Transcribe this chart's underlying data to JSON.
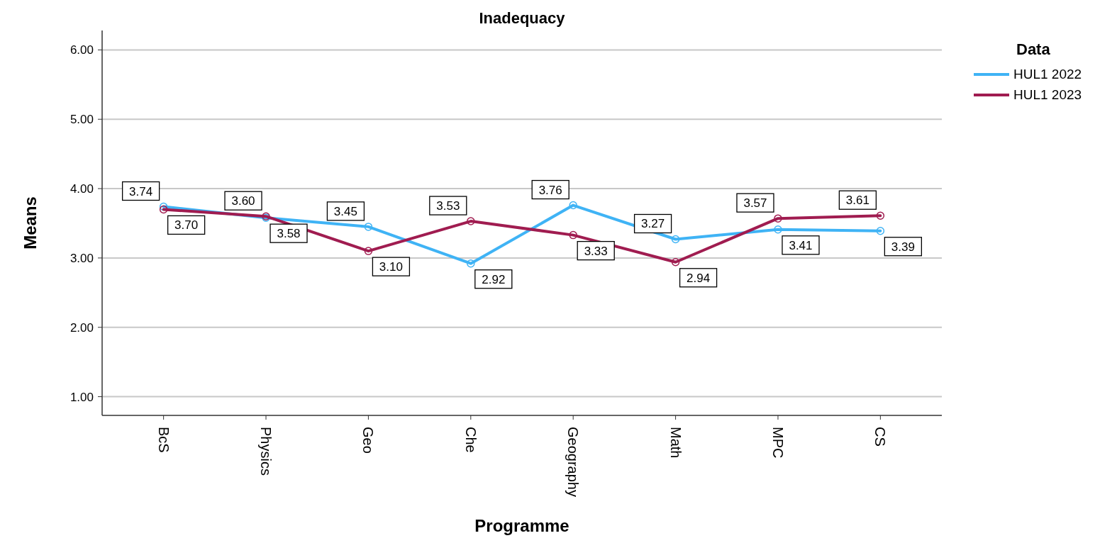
{
  "chart_data": {
    "type": "line",
    "title": "Inadequacy",
    "xlabel": "Programme",
    "ylabel": "Means",
    "legend_title": "Data",
    "categories": [
      "BcS",
      "Physics",
      "Geo",
      "Che",
      "Geography",
      "Math",
      "MPC",
      "CS"
    ],
    "series": [
      {
        "name": "HUL1 2022",
        "color": "#3fb3f5",
        "values": [
          3.74,
          3.58,
          3.45,
          2.92,
          3.76,
          3.27,
          3.41,
          3.39
        ],
        "value_labels": [
          "3.74",
          "3.58",
          "3.45",
          "2.92",
          "3.76",
          "3.27",
          "3.41",
          "3.39"
        ]
      },
      {
        "name": "HUL1 2023",
        "color": "#a01c50",
        "values": [
          3.7,
          3.6,
          3.1,
          3.53,
          3.33,
          2.94,
          3.57,
          3.61
        ],
        "value_labels": [
          "3.70",
          "3.60",
          "3.10",
          "3.53",
          "3.33",
          "2.94",
          "3.57",
          "3.61"
        ]
      }
    ],
    "ylim": [
      0.73,
      6.28
    ],
    "yticks": [
      {
        "value": 1,
        "label": "1.00"
      },
      {
        "value": 2,
        "label": "2.00"
      },
      {
        "value": 3,
        "label": "3.00"
      },
      {
        "value": 4,
        "label": "4.00"
      },
      {
        "value": 5,
        "label": "5.00"
      },
      {
        "value": 6,
        "label": "6.00"
      }
    ],
    "grid": "y",
    "legend": "top right",
    "marker": "circle",
    "line_style": "solid"
  }
}
